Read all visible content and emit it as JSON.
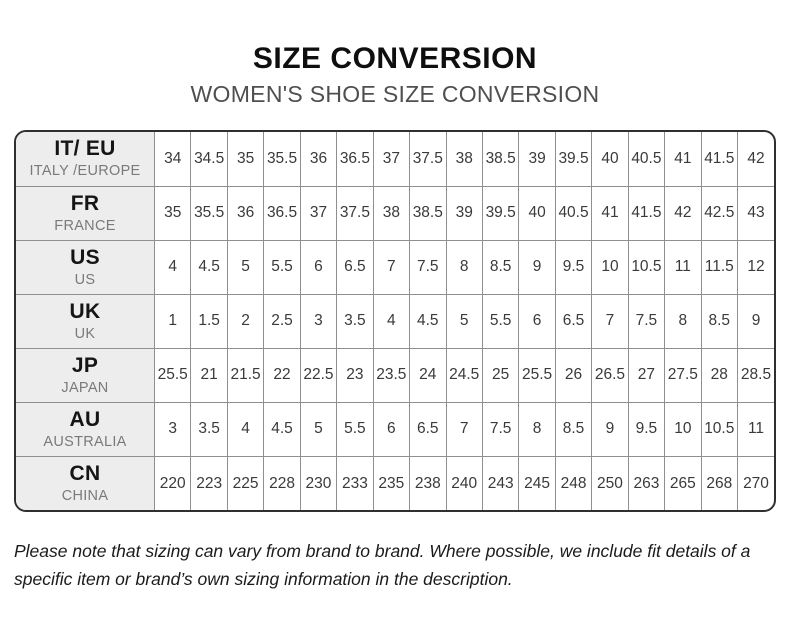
{
  "page": {
    "title": "SIZE CONVERSION",
    "subtitle": "WOMEN'S SHOE SIZE CONVERSION",
    "footnote": "Please note that sizing can vary from brand to brand. Where possible, we include fit details of a specific item or brand’s own sizing information in the description."
  },
  "colors": {
    "header_cell_bg": "#ededed",
    "outer_border": "#2f2f2f",
    "grid_line": "#8f8f8f",
    "code_text": "#151515",
    "region_text": "#7a7a7a",
    "value_text": "#3a3a3a",
    "subtitle_text": "#4f4f4f"
  },
  "table": {
    "rows": [
      {
        "code": "IT/ EU",
        "region": "ITALY /EUROPE",
        "values": [
          "34",
          "34.5",
          "35",
          "35.5",
          "36",
          "36.5",
          "37",
          "37.5",
          "38",
          "38.5",
          "39",
          "39.5",
          "40",
          "40.5",
          "41",
          "41.5",
          "42"
        ]
      },
      {
        "code": "FR",
        "region": "FRANCE",
        "values": [
          "35",
          "35.5",
          "36",
          "36.5",
          "37",
          "37.5",
          "38",
          "38.5",
          "39",
          "39.5",
          "40",
          "40.5",
          "41",
          "41.5",
          "42",
          "42.5",
          "43"
        ]
      },
      {
        "code": "US",
        "region": "US",
        "values": [
          "4",
          "4.5",
          "5",
          "5.5",
          "6",
          "6.5",
          "7",
          "7.5",
          "8",
          "8.5",
          "9",
          "9.5",
          "10",
          "10.5",
          "11",
          "11.5",
          "12"
        ]
      },
      {
        "code": "UK",
        "region": "UK",
        "values": [
          "1",
          "1.5",
          "2",
          "2.5",
          "3",
          "3.5",
          "4",
          "4.5",
          "5",
          "5.5",
          "6",
          "6.5",
          "7",
          "7.5",
          "8",
          "8.5",
          "9"
        ]
      },
      {
        "code": "JP",
        "region": "JAPAN",
        "values": [
          "25.5",
          "21",
          "21.5",
          "22",
          "22.5",
          "23",
          "23.5",
          "24",
          "24.5",
          "25",
          "25.5",
          "26",
          "26.5",
          "27",
          "27.5",
          "28",
          "28.5"
        ]
      },
      {
        "code": "AU",
        "region": "AUSTRALIA",
        "values": [
          "3",
          "3.5",
          "4",
          "4.5",
          "5",
          "5.5",
          "6",
          "6.5",
          "7",
          "7.5",
          "8",
          "8.5",
          "9",
          "9.5",
          "10",
          "10.5",
          "11"
        ]
      },
      {
        "code": "CN",
        "region": "CHINA",
        "values": [
          "220",
          "223",
          "225",
          "228",
          "230",
          "233",
          "235",
          "238",
          "240",
          "243",
          "245",
          "248",
          "250",
          "263",
          "265",
          "268",
          "270"
        ]
      }
    ]
  }
}
